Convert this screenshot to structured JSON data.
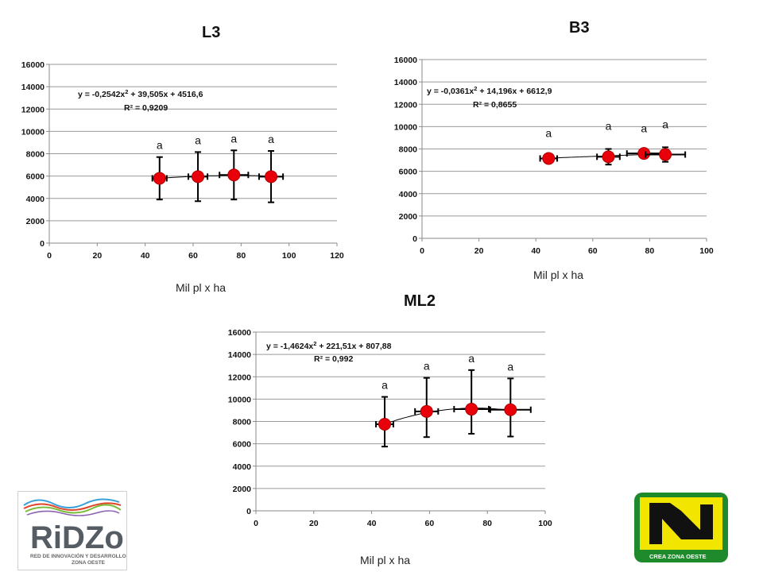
{
  "chart_data": [
    {
      "id": "L3",
      "type": "scatter",
      "title": "L3",
      "xlabel": "Mil pl x ha",
      "xlim": [
        0,
        120
      ],
      "ylim": [
        0,
        16000
      ],
      "xticks": [
        0,
        20,
        40,
        60,
        80,
        100,
        120
      ],
      "yticks": [
        0,
        2000,
        4000,
        6000,
        8000,
        10000,
        12000,
        14000,
        16000
      ],
      "equation": "y = -0,2542x",
      "equation_rest": " + 39,505x + 4516,6",
      "r2_label": "R² = 0,9209",
      "points": [
        {
          "x": 46,
          "y": 5800,
          "xerr": 3,
          "yerr_low": 1900,
          "yerr_high": 1900,
          "sig": "a"
        },
        {
          "x": 62,
          "y": 5950,
          "xerr": 4,
          "yerr_low": 2200,
          "yerr_high": 2200,
          "sig": "a"
        },
        {
          "x": 77,
          "y": 6100,
          "xerr": 6,
          "yerr_low": 2200,
          "yerr_high": 2200,
          "sig": "a"
        },
        {
          "x": 92.5,
          "y": 5950,
          "xerr": 5,
          "yerr_low": 2300,
          "yerr_high": 2300,
          "sig": "a"
        }
      ],
      "trend": {
        "a": -0.2542,
        "b": 39.505,
        "c": 4516.6
      }
    },
    {
      "id": "B3",
      "type": "scatter",
      "title": "B3",
      "xlabel": "Mil pl x ha",
      "xlim": [
        0,
        100
      ],
      "ylim": [
        0,
        16000
      ],
      "xticks": [
        0,
        20,
        40,
        60,
        80,
        100
      ],
      "yticks": [
        0,
        2000,
        4000,
        6000,
        8000,
        10000,
        12000,
        14000,
        16000
      ],
      "equation": "y = -0,0361x",
      "equation_rest": " + 14,196x + 6612,9",
      "r2_label": "R² = 0,8655",
      "points": [
        {
          "x": 44.5,
          "y": 7150,
          "xerr": 3,
          "yerr_low": 200,
          "yerr_high": 200,
          "sig": "a"
        },
        {
          "x": 65.5,
          "y": 7300,
          "xerr": 4,
          "yerr_low": 700,
          "yerr_high": 700,
          "sig": "a"
        },
        {
          "x": 78,
          "y": 7600,
          "xerr": 6,
          "yerr_low": 200,
          "yerr_high": 200,
          "sig": "a"
        },
        {
          "x": 85.5,
          "y": 7500,
          "xerr": 7,
          "yerr_low": 650,
          "yerr_high": 650,
          "sig": "a"
        }
      ],
      "trend": {
        "a": -0.0361,
        "b": 14.196,
        "c": 6612.9
      }
    },
    {
      "id": "ML2",
      "type": "scatter",
      "title": "ML2",
      "xlabel": "Mil pl x ha",
      "xlim": [
        0,
        100
      ],
      "ylim": [
        0,
        16000
      ],
      "xticks": [
        0,
        20,
        40,
        60,
        80,
        100
      ],
      "yticks": [
        0,
        2000,
        4000,
        6000,
        8000,
        10000,
        12000,
        14000,
        16000
      ],
      "equation": "y = -1,4624x",
      "equation_rest": " + 221,51x + 807,88",
      "r2_label": "R² = 0,992",
      "points": [
        {
          "x": 44.5,
          "y": 7750,
          "xerr": 3,
          "yerr_low": 2000,
          "yerr_high": 2450,
          "sig": "a"
        },
        {
          "x": 59,
          "y": 8900,
          "xerr": 4,
          "yerr_low": 2300,
          "yerr_high": 3000,
          "sig": "a"
        },
        {
          "x": 74.5,
          "y": 9100,
          "xerr": 6,
          "yerr_low": 2200,
          "yerr_high": 3500,
          "sig": "a"
        },
        {
          "x": 88,
          "y": 9050,
          "xerr": 7,
          "yerr_low": 2400,
          "yerr_high": 2800,
          "sig": "a"
        }
      ],
      "trend": {
        "a": -1.4624,
        "b": 221.51,
        "c": 807.88
      }
    }
  ],
  "logos": {
    "ridzo": {
      "name": "RiDZo",
      "subtitle_line1": "RED DE INNOVACIÓN Y DESARROLLO",
      "subtitle_line2": "ZONA OESTE"
    },
    "crea": {
      "label": "CREA   ZONA OESTE"
    }
  },
  "colors": {
    "marker": "#e8000b",
    "errorbar": "#000000",
    "trendline": "#000000",
    "crea_green": "#1e8a2b",
    "crea_yellow": "#f2e600"
  }
}
